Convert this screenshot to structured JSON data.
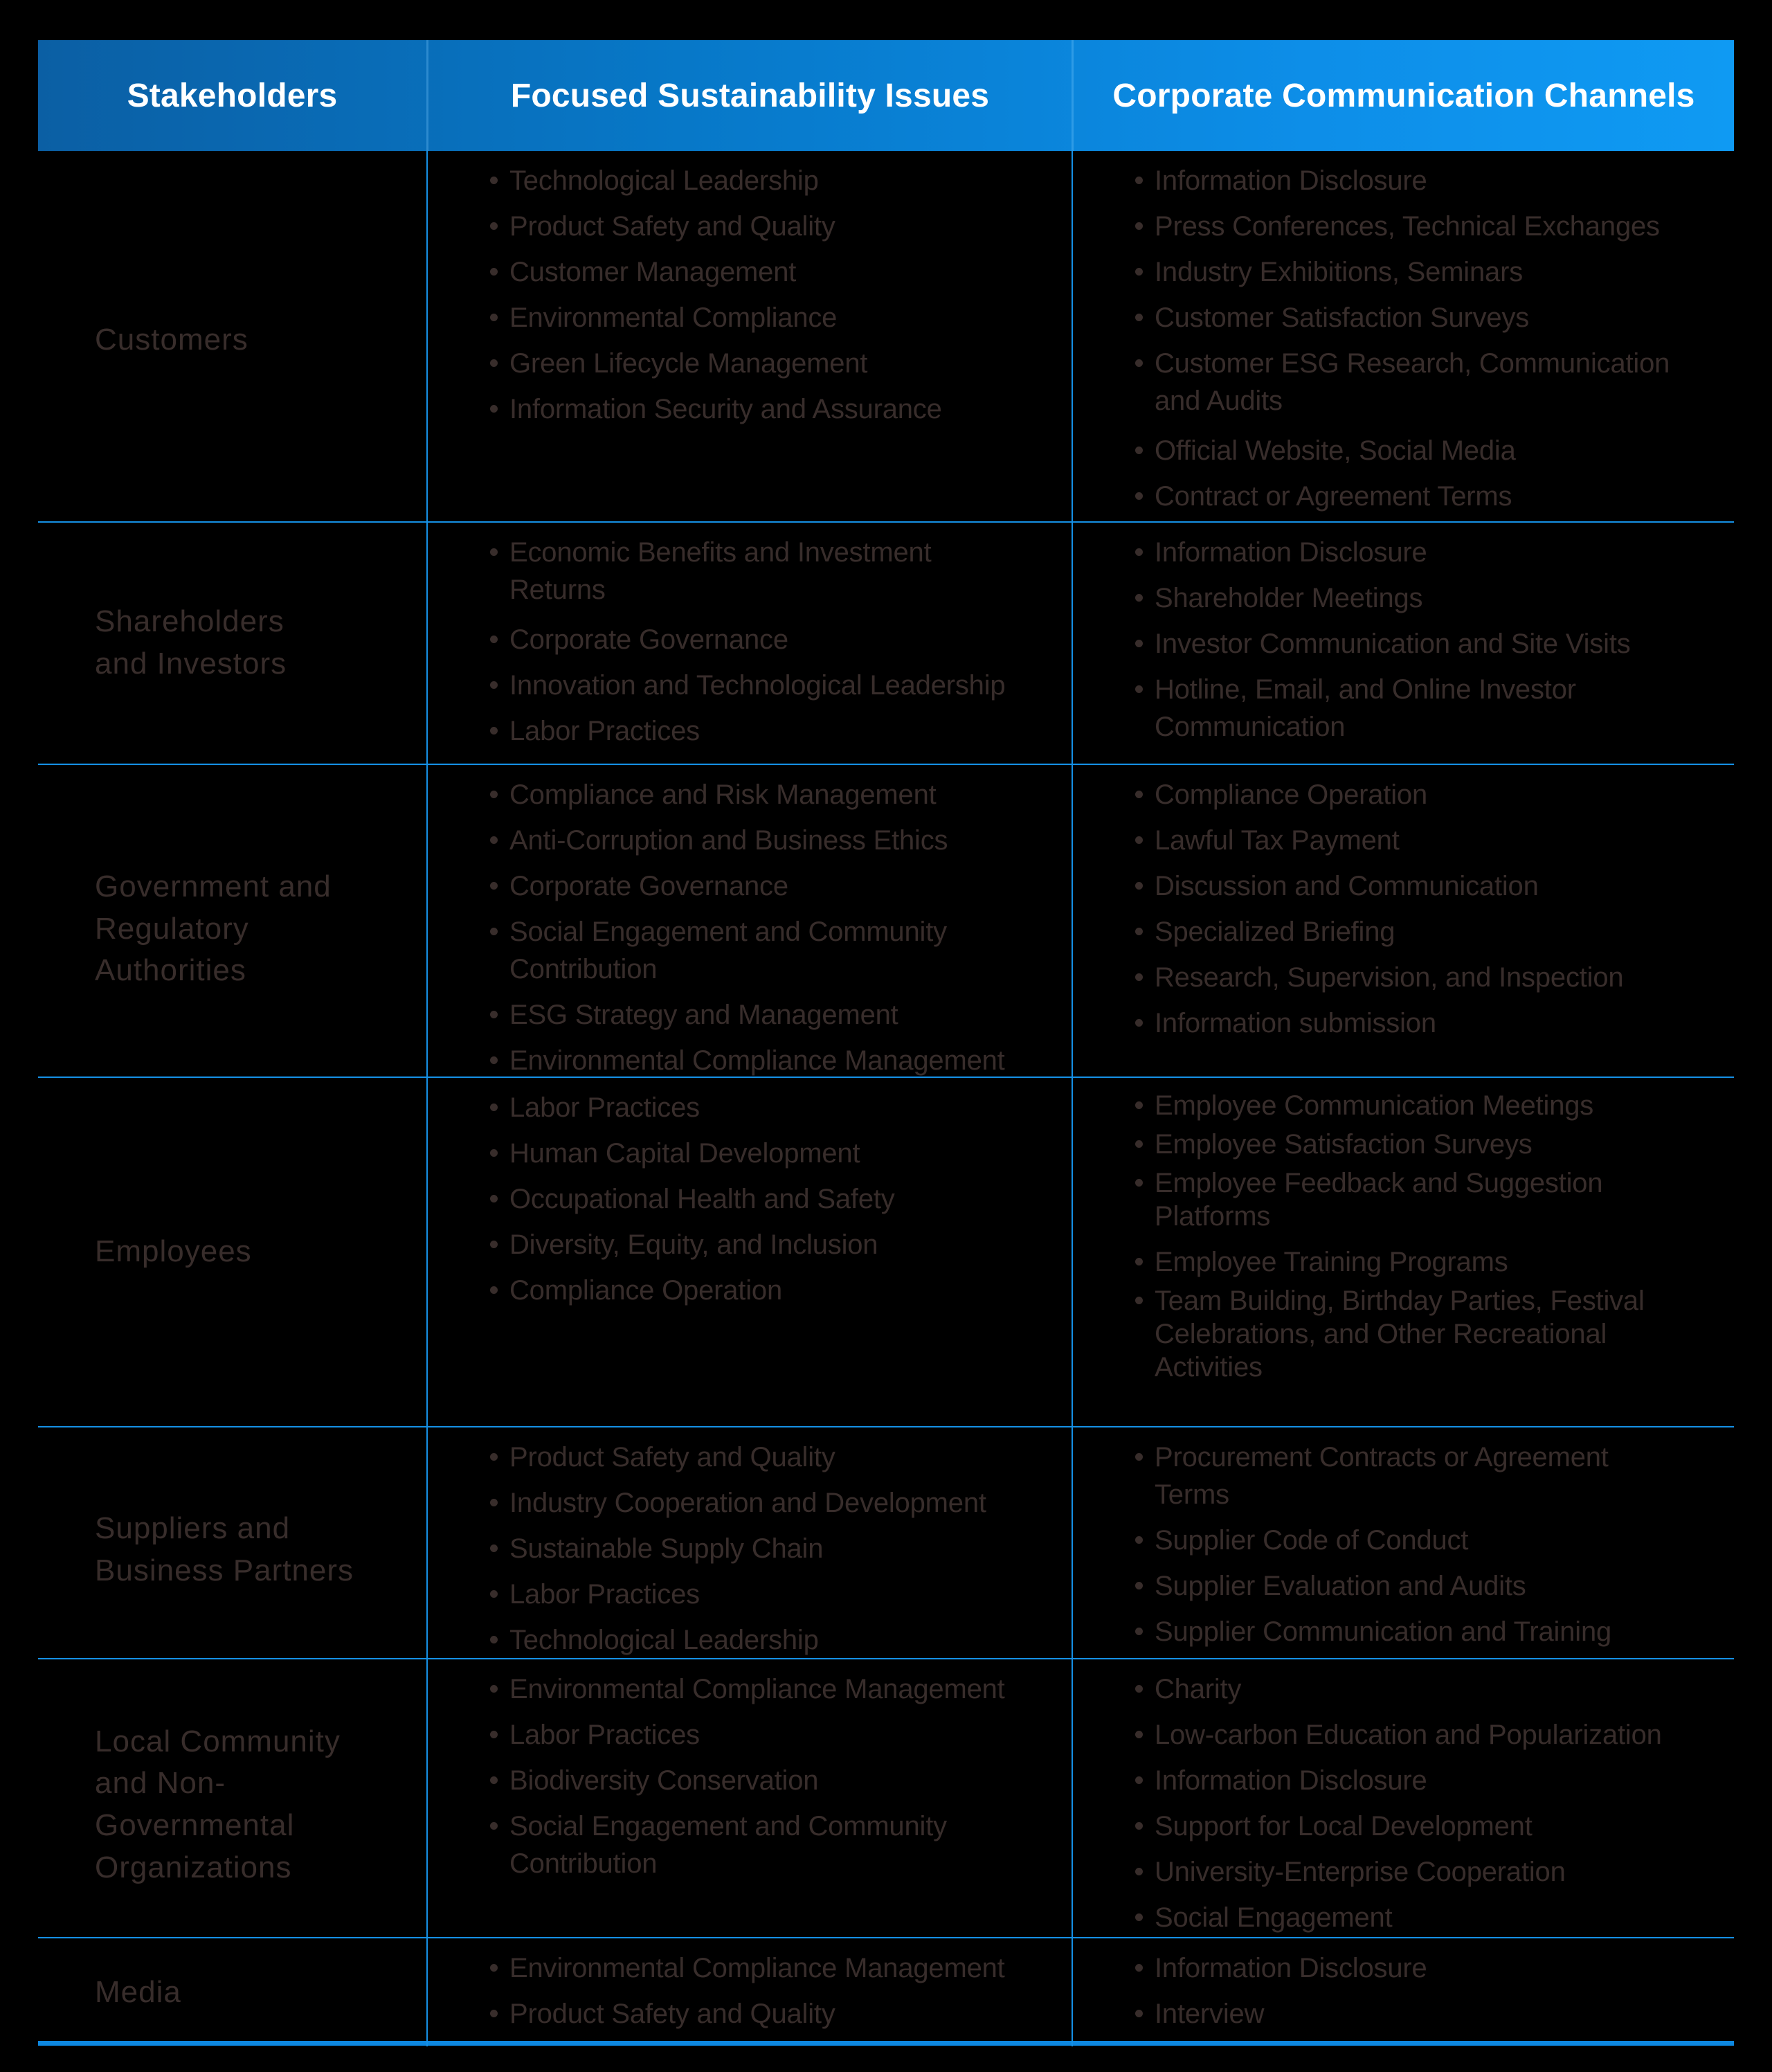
{
  "table": {
    "columns": [
      "Stakeholders",
      "Focused Sustainability Issues",
      "Corporate Communication Channels"
    ],
    "rows": [
      {
        "stakeholder": "Customers",
        "issues": [
          "Technological Leadership",
          "Product Safety and Quality",
          "Customer Management",
          "Environmental Compliance",
          "Green Lifecycle Management",
          "Information Security and Assurance"
        ],
        "channels": [
          "Information Disclosure",
          "Press Conferences, Technical Exchanges",
          "Industry Exhibitions, Seminars",
          "Customer Satisfaction Surveys",
          "Customer ESG Research, Communication\nand Audits",
          "Official Website, Social Media",
          "Contract or Agreement Terms"
        ]
      },
      {
        "stakeholder": "Shareholders\nand Investors",
        "issues": [
          "Economic Benefits and Investment\nReturns",
          "Corporate Governance",
          "Innovation and Technological Leadership",
          "Labor Practices"
        ],
        "channels": [
          "Information Disclosure",
          "Shareholder Meetings",
          "Investor Communication and Site Visits",
          "Hotline, Email, and Online Investor\nCommunication"
        ]
      },
      {
        "stakeholder": "Government and\nRegulatory\nAuthorities",
        "issues": [
          "Compliance and Risk Management",
          "Anti-Corruption and Business Ethics",
          "Corporate Governance",
          "Social Engagement and Community\nContribution",
          "ESG Strategy and Management",
          "Environmental Compliance Management"
        ],
        "channels": [
          "Compliance Operation",
          "Lawful Tax Payment",
          "Discussion and Communication",
          "Specialized Briefing",
          "Research, Supervision, and Inspection",
          "Information submission"
        ]
      },
      {
        "stakeholder": "Employees",
        "issues": [
          "Labor Practices",
          "Human Capital Development",
          "Occupational Health and Safety",
          "Diversity, Equity, and Inclusion",
          "Compliance Operation"
        ],
        "channels": [
          "Employee Communication Meetings",
          "Employee Satisfaction Surveys",
          "Employee Feedback and Suggestion\nPlatforms",
          "Employee Training Programs",
          "Team Building, Birthday Parties, Festival\nCelebrations, and Other Recreational\nActivities"
        ]
      },
      {
        "stakeholder": "Suppliers and\nBusiness Partners",
        "issues": [
          "Product Safety and Quality",
          "Industry Cooperation and Development",
          "Sustainable Supply Chain",
          "Labor Practices",
          "Technological Leadership"
        ],
        "channels": [
          "Procurement Contracts or Agreement\nTerms",
          "Supplier Code of Conduct",
          "Supplier Evaluation and Audits",
          "Supplier Communication and Training"
        ]
      },
      {
        "stakeholder": "Local Community\nand Non-Governmental\nOrganizations",
        "issues": [
          "Environmental Compliance Management",
          "Labor Practices",
          "Biodiversity Conservation",
          "Social Engagement and Community\nContribution"
        ],
        "channels": [
          "Charity",
          "Low-carbon Education and Popularization",
          "Information Disclosure",
          "Support for Local Development",
          "University-Enterprise Cooperation",
          "Social Engagement"
        ]
      },
      {
        "stakeholder": "Media",
        "issues": [
          "Environmental Compliance Management",
          "Product Safety and Quality"
        ],
        "channels": [
          "Information Disclosure",
          "Interview"
        ]
      }
    ]
  },
  "colors": {
    "background": "#000000",
    "header_gradient_left": "#0b5fa4",
    "header_gradient_mid": "#0778c8",
    "header_gradient_right": "#0f9af3",
    "header_text": "#ffffff",
    "body_text": "#382d2b",
    "grid_line": "#1590e5",
    "bottom_line": "#0d87e0"
  }
}
